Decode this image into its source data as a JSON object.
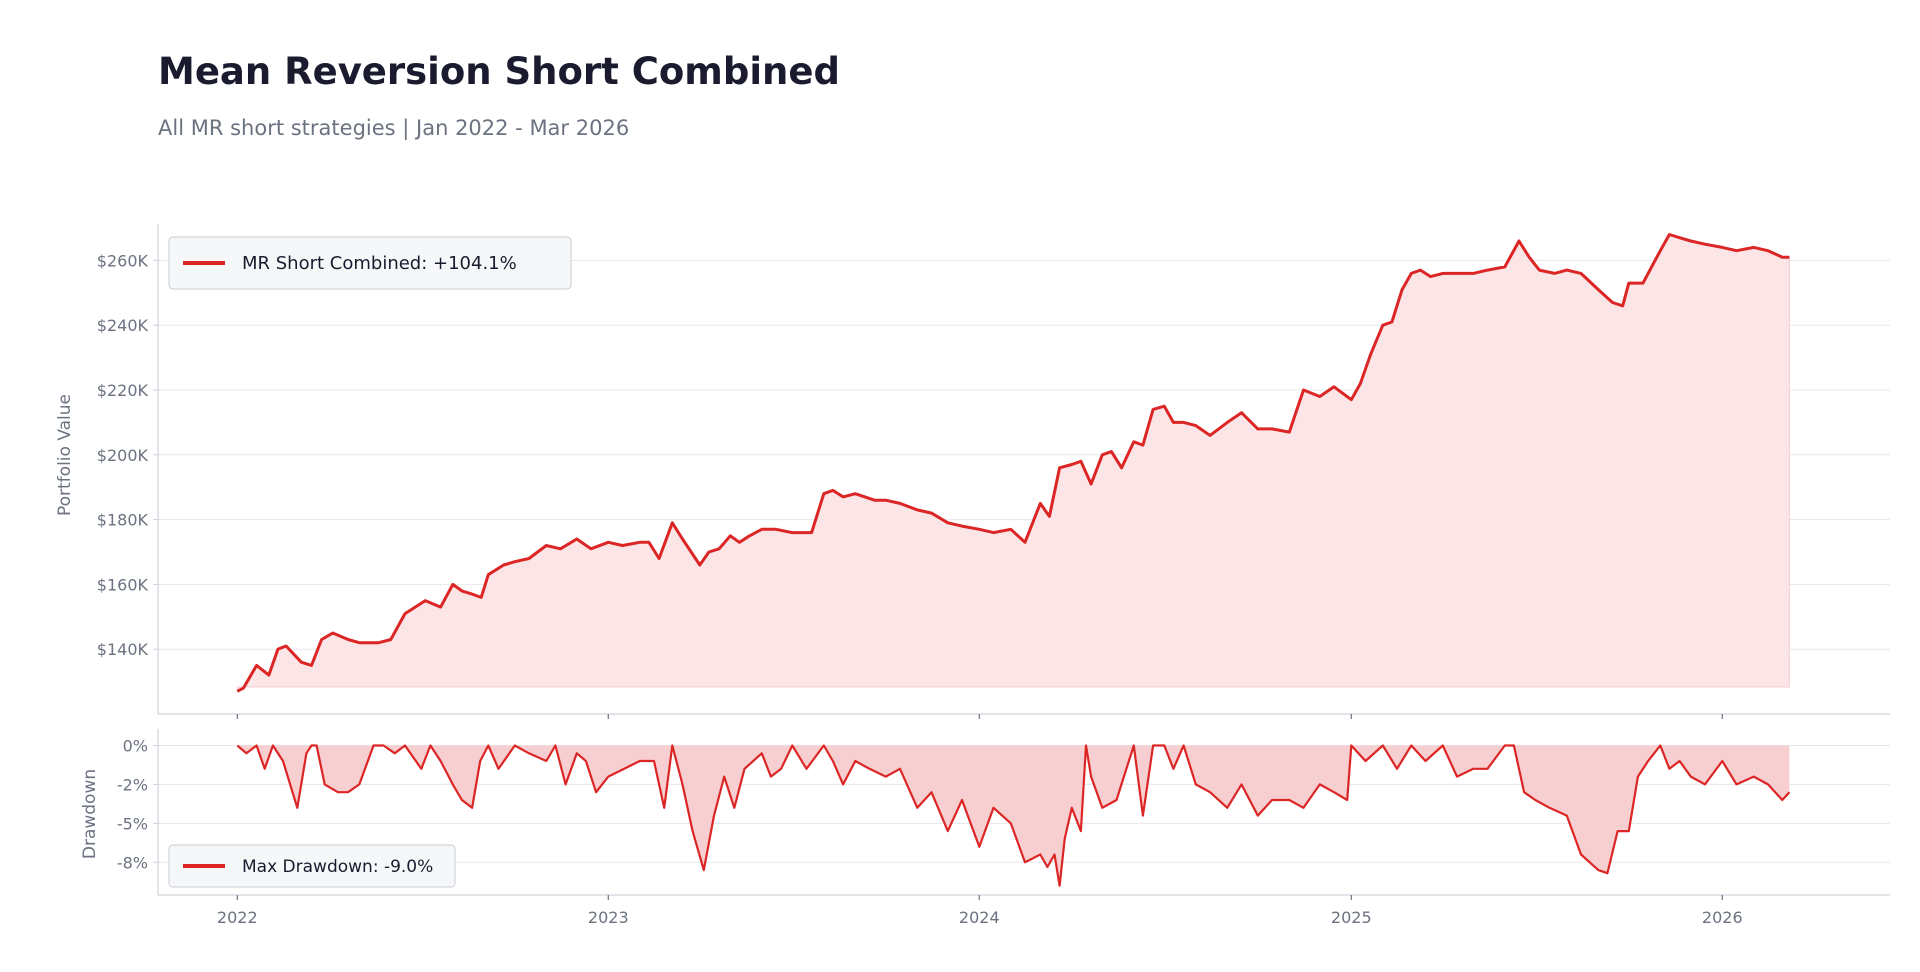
{
  "header": {
    "title": "Mean Reversion Short Combined",
    "subtitle": "All MR short strategies | Jan 2022 - Mar 2026"
  },
  "colors": {
    "line": "#dc2626",
    "fill_top": "#fbe5e6",
    "fill_bottom": "#f7cfd0",
    "grid": "#e5e7eb",
    "axis": "#cfd3da",
    "text_muted": "#6b7280",
    "legend_bg": "#f6f7f9",
    "legend_border": "#c9ccd2"
  },
  "chart_data": [
    {
      "type": "area",
      "title": "Mean Reversion Short Combined",
      "ylabel": "Portfolio Value",
      "xlabel": "",
      "ylim": [
        120000,
        270000
      ],
      "xlim": [
        "2021-10-15",
        "2026-06-15"
      ],
      "grid": true,
      "legend_position": "top-left",
      "y_ticks": [
        {
          "value": 140000,
          "label": "$140K"
        },
        {
          "value": 160000,
          "label": "$160K"
        },
        {
          "value": 180000,
          "label": "$180K"
        },
        {
          "value": 200000,
          "label": "$200K"
        },
        {
          "value": 220000,
          "label": "$220K"
        },
        {
          "value": 240000,
          "label": "$240K"
        },
        {
          "value": 260000,
          "label": "$260K"
        }
      ],
      "series": [
        {
          "name": "MR Short Combined: +104.1%",
          "x": [
            "2022-01-01",
            "2022-01-07",
            "2022-01-20",
            "2022-02-01",
            "2022-02-10",
            "2022-02-18",
            "2022-03-05",
            "2022-03-15",
            "2022-03-25",
            "2022-04-05",
            "2022-04-20",
            "2022-05-01",
            "2022-05-20",
            "2022-06-01",
            "2022-06-15",
            "2022-06-25",
            "2022-07-05",
            "2022-07-20",
            "2022-08-01",
            "2022-08-10",
            "2022-08-20",
            "2022-08-29",
            "2022-09-05",
            "2022-09-20",
            "2022-10-01",
            "2022-10-15",
            "2022-11-01",
            "2022-11-15",
            "2022-12-01",
            "2022-12-15",
            "2023-01-01",
            "2023-01-15",
            "2023-02-01",
            "2023-02-10",
            "2023-02-20",
            "2023-03-05",
            "2023-03-15",
            "2023-04-01",
            "2023-04-10",
            "2023-04-20",
            "2023-05-01",
            "2023-05-10",
            "2023-05-20",
            "2023-06-01",
            "2023-06-15",
            "2023-07-01",
            "2023-07-20",
            "2023-08-01",
            "2023-08-10",
            "2023-08-20",
            "2023-09-01",
            "2023-09-20",
            "2023-10-01",
            "2023-10-15",
            "2023-11-01",
            "2023-11-15",
            "2023-12-01",
            "2023-12-15",
            "2024-01-01",
            "2024-01-15",
            "2024-02-01",
            "2024-02-15",
            "2024-03-01",
            "2024-03-10",
            "2024-03-20",
            "2024-04-01",
            "2024-04-10",
            "2024-04-20",
            "2024-05-01",
            "2024-05-10",
            "2024-05-20",
            "2024-06-01",
            "2024-06-10",
            "2024-06-20",
            "2024-07-01",
            "2024-07-10",
            "2024-07-20",
            "2024-08-01",
            "2024-08-15",
            "2024-09-01",
            "2024-09-15",
            "2024-10-01",
            "2024-10-15",
            "2024-11-01",
            "2024-11-15",
            "2024-12-01",
            "2024-12-15",
            "2025-01-01",
            "2025-01-10",
            "2025-01-20",
            "2025-02-01",
            "2025-02-10",
            "2025-02-20",
            "2025-03-01",
            "2025-03-10",
            "2025-03-20",
            "2025-04-01",
            "2025-04-15",
            "2025-05-01",
            "2025-05-15",
            "2025-06-01",
            "2025-06-15",
            "2025-06-25",
            "2025-07-05",
            "2025-07-20",
            "2025-08-01",
            "2025-08-15",
            "2025-09-01",
            "2025-09-15",
            "2025-09-25",
            "2025-10-01",
            "2025-10-15",
            "2025-11-01",
            "2025-11-10",
            "2025-11-20",
            "2025-12-01",
            "2025-12-15",
            "2026-01-01",
            "2026-01-15",
            "2026-02-01",
            "2026-02-15",
            "2026-03-01",
            "2026-03-08"
          ],
          "values": [
            127000,
            128000,
            135000,
            132000,
            140000,
            141000,
            136000,
            135000,
            143000,
            145000,
            143000,
            142000,
            142000,
            143000,
            151000,
            153000,
            155000,
            153000,
            160000,
            158000,
            157000,
            156000,
            163000,
            166000,
            167000,
            168000,
            172000,
            171000,
            174000,
            171000,
            173000,
            172000,
            173000,
            173000,
            168000,
            179000,
            174000,
            166000,
            170000,
            171000,
            175000,
            173000,
            175000,
            177000,
            177000,
            176000,
            176000,
            188000,
            189000,
            187000,
            188000,
            186000,
            186000,
            185000,
            183000,
            182000,
            179000,
            178000,
            177000,
            176000,
            177000,
            173000,
            185000,
            181000,
            196000,
            197000,
            198000,
            191000,
            200000,
            201000,
            196000,
            204000,
            203000,
            214000,
            215000,
            210000,
            210000,
            209000,
            206000,
            210000,
            213000,
            208000,
            208000,
            207000,
            220000,
            218000,
            221000,
            217000,
            222000,
            231000,
            240000,
            241000,
            251000,
            256000,
            257000,
            255000,
            256000,
            256000,
            256000,
            257000,
            258000,
            266000,
            261000,
            257000,
            256000,
            257000,
            256000,
            251000,
            247000,
            246000,
            253000,
            253000,
            263000,
            268000,
            267000,
            266000,
            265000,
            264000,
            263000,
            264000,
            263000,
            261000,
            261000
          ]
        }
      ]
    },
    {
      "type": "area",
      "ylabel": "Drawdown",
      "xlabel": "",
      "ylim": [
        -9.6,
        0.8
      ],
      "xlim": [
        "2021-10-15",
        "2026-06-15"
      ],
      "grid": true,
      "legend_position": "bottom-left",
      "y_ticks": [
        {
          "value": 0,
          "label": "0%"
        },
        {
          "value": -2.5,
          "label": "-2%"
        },
        {
          "value": -5,
          "label": "-5%"
        },
        {
          "value": -7.5,
          "label": "-8%"
        }
      ],
      "x_ticks": [
        {
          "value": "2022-01-01",
          "label": "2022"
        },
        {
          "value": "2023-01-01",
          "label": "2023"
        },
        {
          "value": "2024-01-01",
          "label": "2024"
        },
        {
          "value": "2025-01-01",
          "label": "2025"
        },
        {
          "value": "2026-01-01",
          "label": "2026"
        }
      ],
      "series": [
        {
          "name": "Max Drawdown: -9.0%",
          "x": [
            "2022-01-01",
            "2022-01-10",
            "2022-01-20",
            "2022-01-28",
            "2022-02-05",
            "2022-02-15",
            "2022-03-01",
            "2022-03-10",
            "2022-03-15",
            "2022-03-20",
            "2022-03-28",
            "2022-04-10",
            "2022-04-20",
            "2022-05-01",
            "2022-05-15",
            "2022-05-25",
            "2022-06-05",
            "2022-06-15",
            "2022-07-01",
            "2022-07-10",
            "2022-07-20",
            "2022-08-01",
            "2022-08-10",
            "2022-08-20",
            "2022-08-28",
            "2022-09-05",
            "2022-09-15",
            "2022-10-01",
            "2022-10-15",
            "2022-11-01",
            "2022-11-10",
            "2022-11-20",
            "2022-12-01",
            "2022-12-10",
            "2022-12-20",
            "2023-01-01",
            "2023-02-01",
            "2023-02-15",
            "2023-02-25",
            "2023-03-05",
            "2023-03-15",
            "2023-03-25",
            "2023-04-05",
            "2023-04-15",
            "2023-04-25",
            "2023-05-05",
            "2023-05-15",
            "2023-06-01",
            "2023-06-10",
            "2023-06-20",
            "2023-07-01",
            "2023-07-15",
            "2023-08-01",
            "2023-08-10",
            "2023-08-20",
            "2023-09-01",
            "2023-09-15",
            "2023-10-01",
            "2023-10-15",
            "2023-11-01",
            "2023-11-15",
            "2023-12-01",
            "2023-12-15",
            "2024-01-01",
            "2024-01-15",
            "2024-02-01",
            "2024-02-15",
            "2024-03-01",
            "2024-03-08",
            "2024-03-15",
            "2024-03-20",
            "2024-03-25",
            "2024-04-01",
            "2024-04-10",
            "2024-04-15",
            "2024-04-20",
            "2024-05-01",
            "2024-05-15",
            "2024-06-01",
            "2024-06-10",
            "2024-06-20",
            "2024-07-01",
            "2024-07-10",
            "2024-07-20",
            "2024-08-01",
            "2024-08-15",
            "2024-09-01",
            "2024-09-15",
            "2024-10-01",
            "2024-10-15",
            "2024-11-01",
            "2024-11-15",
            "2024-12-01",
            "2024-12-15",
            "2024-12-28",
            "2025-01-01",
            "2025-01-15",
            "2025-02-01",
            "2025-02-15",
            "2025-03-01",
            "2025-03-15",
            "2025-04-01",
            "2025-04-15",
            "2025-05-01",
            "2025-05-15",
            "2025-06-01",
            "2025-06-10",
            "2025-06-20",
            "2025-07-01",
            "2025-07-15",
            "2025-08-01",
            "2025-08-15",
            "2025-09-01",
            "2025-09-10",
            "2025-09-20",
            "2025-10-01",
            "2025-10-10",
            "2025-10-20",
            "2025-11-01",
            "2025-11-10",
            "2025-11-20",
            "2025-12-01",
            "2025-12-15",
            "2026-01-01",
            "2026-01-15",
            "2026-02-01",
            "2026-02-15",
            "2026-03-01",
            "2026-03-08"
          ],
          "values": [
            0,
            -0.5,
            0,
            -1.5,
            0,
            -1.0,
            -4.0,
            -0.5,
            0,
            0,
            -2.5,
            -3.0,
            -3.0,
            -2.5,
            0,
            0,
            -0.5,
            0,
            -1.5,
            0,
            -1.0,
            -2.5,
            -3.5,
            -4.0,
            -1.0,
            0,
            -1.5,
            0,
            -0.5,
            -1.0,
            0,
            -2.5,
            -0.5,
            -1.0,
            -3.0,
            -2.0,
            -1.0,
            -1.0,
            -4.0,
            0,
            -2.5,
            -5.5,
            -8.0,
            -4.5,
            -2.0,
            -4.0,
            -1.5,
            -0.5,
            -2.0,
            -1.5,
            0,
            -1.5,
            0,
            -1.0,
            -2.5,
            -1.0,
            -1.5,
            -2.0,
            -1.5,
            -4.0,
            -3.0,
            -5.5,
            -3.5,
            -6.5,
            -4.0,
            -5.0,
            -7.5,
            -7.0,
            -7.8,
            -7.0,
            -9.0,
            -6.0,
            -4.0,
            -5.5,
            0,
            -2.0,
            -4.0,
            -3.5,
            0,
            -4.5,
            0,
            0,
            -1.5,
            0,
            -2.5,
            -3.0,
            -4.0,
            -2.5,
            -4.5,
            -3.5,
            -3.5,
            -4.0,
            -2.5,
            -3.0,
            -3.5,
            0,
            -1.0,
            0,
            -1.5,
            0,
            -1.0,
            0,
            -2.0,
            -1.5,
            -1.5,
            0,
            0,
            -3.0,
            -3.5,
            -4.0,
            -4.5,
            -7.0,
            -8.0,
            -8.2,
            -5.5,
            -5.5,
            -2.0,
            -1.0,
            0,
            -1.5,
            -1.0,
            -2.0,
            -2.5,
            -1.0,
            -2.5,
            -2.0,
            -2.5,
            -3.5,
            -3.0
          ]
        }
      ]
    }
  ]
}
